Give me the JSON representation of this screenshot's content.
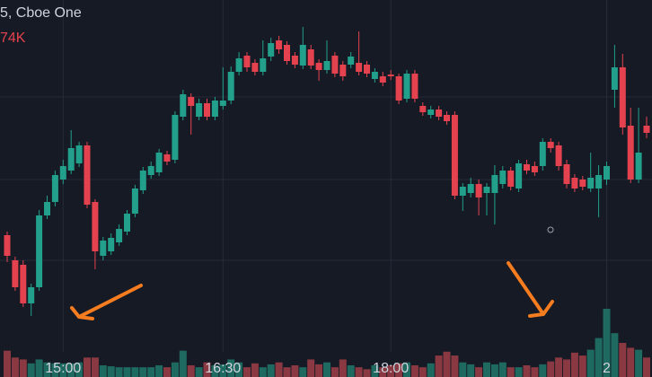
{
  "chart_data": {
    "type": "candlestick",
    "title": "5, Cboe One",
    "subtitle": "74K",
    "up_color": "#22a08c",
    "down_color": "#e5424f",
    "volume_up_color": "#1e6a61",
    "volume_down_color": "#8a3942",
    "grid": true,
    "ylim": [
      0,
      420
    ],
    "y2lim": [
      0,
      387
    ],
    "categories": [
      null,
      null,
      null,
      null,
      null,
      null,
      null,
      "15:00",
      null,
      null,
      null,
      null,
      null,
      null,
      null,
      null,
      null,
      null,
      null,
      null,
      null,
      null,
      null,
      null,
      null,
      null,
      null,
      "16:30",
      null,
      null,
      null,
      null,
      null,
      null,
      null,
      null,
      null,
      null,
      null,
      null,
      null,
      null,
      null,
      null,
      null,
      null,
      null,
      null,
      "18:00",
      null,
      null,
      null,
      null,
      null,
      null,
      null,
      null,
      null,
      null,
      null,
      null,
      null,
      null,
      null,
      null,
      null,
      null,
      null,
      null,
      null,
      null,
      null,
      null,
      null,
      null,
      "2",
      null,
      null,
      null,
      null,
      null
    ],
    "ohlc": [
      [
        158,
        162,
        128,
        135
      ],
      [
        130,
        134,
        96,
        100
      ],
      [
        125,
        130,
        78,
        82
      ],
      [
        82,
        104,
        68,
        100
      ],
      [
        100,
        186,
        96,
        180
      ],
      [
        180,
        202,
        176,
        195
      ],
      [
        195,
        230,
        190,
        225
      ],
      [
        220,
        242,
        215,
        235
      ],
      [
        230,
        275,
        226,
        255
      ],
      [
        238,
        262,
        234,
        258
      ],
      [
        258,
        262,
        188,
        192
      ],
      [
        195,
        198,
        120,
        140
      ],
      [
        135,
        156,
        130,
        152
      ],
      [
        140,
        160,
        136,
        155
      ],
      [
        150,
        170,
        146,
        165
      ],
      [
        162,
        186,
        158,
        182
      ],
      [
        182,
        214,
        178,
        210
      ],
      [
        208,
        234,
        204,
        230
      ],
      [
        225,
        240,
        221,
        235
      ],
      [
        228,
        254,
        224,
        250
      ],
      [
        248,
        252,
        236,
        240
      ],
      [
        242,
        296,
        238,
        292
      ],
      [
        290,
        320,
        286,
        315
      ],
      [
        312,
        316,
        270,
        302
      ],
      [
        290,
        310,
        286,
        305
      ],
      [
        305,
        310,
        286,
        290
      ],
      [
        290,
        312,
        286,
        308
      ],
      [
        302,
        345,
        298,
        308
      ],
      [
        308,
        346,
        304,
        340
      ],
      [
        340,
        362,
        336,
        355
      ],
      [
        358,
        362,
        340,
        345
      ],
      [
        350,
        354,
        336,
        340
      ],
      [
        340,
        375,
        336,
        355
      ],
      [
        357,
        378,
        352,
        372
      ],
      [
        375,
        380,
        360,
        365
      ],
      [
        370,
        374,
        348,
        352
      ],
      [
        358,
        362,
        344,
        348
      ],
      [
        347,
        390,
        343,
        370
      ],
      [
        365,
        370,
        343,
        347
      ],
      [
        350,
        354,
        330,
        342
      ],
      [
        342,
        375,
        338,
        352
      ],
      [
        358,
        362,
        334,
        338
      ],
      [
        348,
        352,
        330,
        335
      ],
      [
        348,
        362,
        344,
        357
      ],
      [
        350,
        385,
        336,
        340
      ],
      [
        348,
        352,
        334,
        338
      ],
      [
        332,
        344,
        328,
        340
      ],
      [
        335,
        340,
        324,
        328
      ],
      [
        337,
        342,
        331,
        335
      ],
      [
        335,
        338,
        304,
        308
      ],
      [
        310,
        342,
        306,
        338
      ],
      [
        338,
        342,
        306,
        310
      ],
      [
        302,
        306,
        291,
        295
      ],
      [
        292,
        302,
        288,
        298
      ],
      [
        298,
        302,
        286,
        290
      ],
      [
        292,
        296,
        281,
        285
      ],
      [
        292,
        296,
        198,
        202
      ],
      [
        202,
        216,
        185,
        212
      ],
      [
        205,
        222,
        200,
        215
      ],
      [
        215,
        220,
        180,
        200
      ],
      [
        205,
        216,
        180,
        212
      ],
      [
        205,
        236,
        170,
        225
      ],
      [
        215,
        235,
        210,
        230
      ],
      [
        230,
        234,
        208,
        212
      ],
      [
        210,
        242,
        206,
        238
      ],
      [
        237,
        242,
        226,
        230
      ],
      [
        235,
        240,
        224,
        228
      ],
      [
        235,
        266,
        230,
        262
      ],
      [
        262,
        266,
        250,
        255
      ],
      [
        258,
        262,
        230,
        235
      ],
      [
        237,
        242,
        210,
        215
      ],
      [
        222,
        226,
        206,
        210
      ],
      [
        220,
        224,
        208,
        212
      ],
      [
        210,
        250,
        206,
        222
      ],
      [
        210,
        236,
        178,
        225
      ],
      [
        220,
        240,
        214,
        235
      ],
      [
        320,
        370,
        300,
        345
      ],
      [
        345,
        360,
        270,
        278
      ],
      [
        280,
        300,
        216,
        220
      ],
      [
        220,
        300,
        216,
        250
      ],
      [
        280,
        290,
        266,
        272
      ]
    ],
    "volume": [
      27,
      20,
      18,
      14,
      18,
      15,
      14,
      14,
      14,
      15,
      20,
      20,
      12,
      11,
      10,
      10,
      10,
      10,
      10,
      12,
      10,
      15,
      27,
      12,
      10,
      15,
      12,
      13,
      18,
      15,
      10,
      14,
      10,
      13,
      15,
      10,
      12,
      10,
      18,
      13,
      15,
      10,
      18,
      12,
      10,
      8,
      12,
      10,
      12,
      14,
      15,
      12,
      10,
      14,
      22,
      26,
      22,
      15,
      13,
      10,
      15,
      13,
      15,
      10,
      10,
      12,
      10,
      13,
      16,
      20,
      18,
      25,
      22,
      28,
      40,
      70,
      45,
      35,
      30,
      28,
      20
    ]
  }
}
